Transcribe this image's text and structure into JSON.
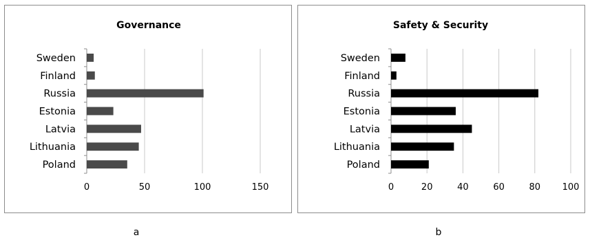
{
  "captions": {
    "a": "a",
    "b": "b"
  },
  "chart_data": [
    {
      "type": "bar",
      "orientation": "horizontal",
      "title": "Governance",
      "categories": [
        "Sweden",
        "Finland",
        "Russia",
        "Estonia",
        "Latvia",
        "Lithuania",
        "Poland"
      ],
      "values": [
        6,
        7,
        101,
        23,
        47,
        45,
        35
      ],
      "xlim": [
        0,
        150
      ],
      "xticks": [
        0,
        50,
        100,
        150
      ],
      "grid": true,
      "bar_color": "#4a4a4a"
    },
    {
      "type": "bar",
      "orientation": "horizontal",
      "title": "Safety & Security",
      "categories": [
        "Sweden",
        "Finland",
        "Russia",
        "Estonia",
        "Latvia",
        "Lithuania",
        "Poland"
      ],
      "values": [
        8,
        3,
        82,
        36,
        45,
        35,
        21
      ],
      "xlim": [
        0,
        100
      ],
      "xticks": [
        0,
        20,
        40,
        60,
        80,
        100
      ],
      "grid": true,
      "bar_color": "#000000"
    }
  ]
}
